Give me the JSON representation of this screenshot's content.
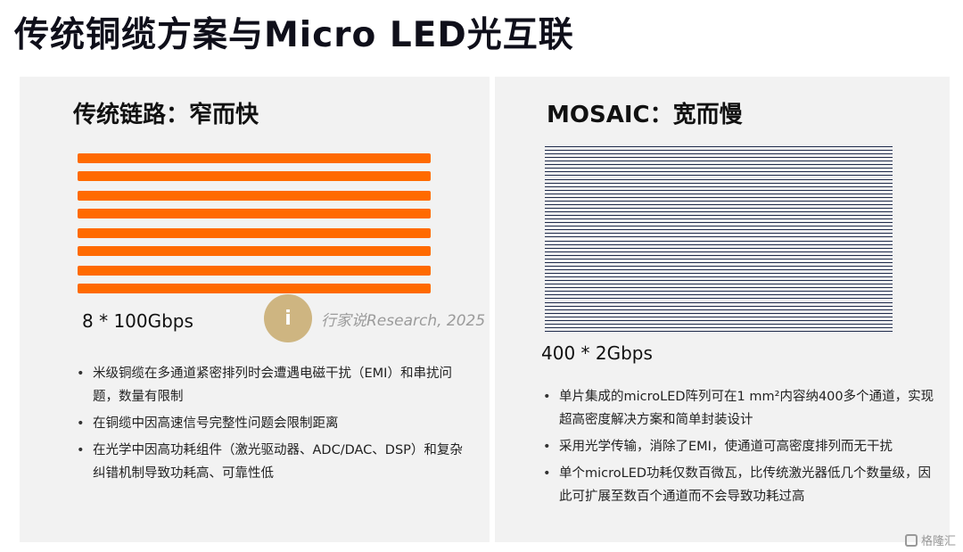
{
  "slide": {
    "title": "传统铜缆方案与Micro LED光互联"
  },
  "left_panel": {
    "heading": "传统链路：窄而快",
    "bar_color": "#ff6a00",
    "bar_count": 8,
    "capacity": "8 * 100Gbps",
    "bullets": [
      "米级铜缆在多通道紧密排列时会遭遇电磁干扰（EMI）和串扰问题，数量有限制",
      "在铜缆中因高速信号完整性问题会限制距离",
      "在光学中因高功耗组件（激光驱动器、ADC/DAC、DSP）和复杂纠错机制导致功耗高、可靠性低"
    ]
  },
  "right_panel": {
    "heading": "MOSAIC：宽而慢",
    "line_color": "#1e2a4a",
    "line_count": 52,
    "capacity": "400 * 2Gbps",
    "bullets": [
      "单片集成的microLED阵列可在1 mm²内容纳400多个通道，实现超高密度解决方案和简单封装设计",
      "采用光学传输，消除了EMI，使通道可高密度排列而无干扰",
      "单个microLED功耗仅数百微瓦，比传统激光器低几个数量级，因此可扩展至数百个通道而不会导致功耗过高"
    ]
  },
  "watermark": {
    "text": "行家说Research, 2025",
    "logo_color": "#c8ab6e"
  },
  "corner_mark": {
    "text": "格隆汇"
  }
}
